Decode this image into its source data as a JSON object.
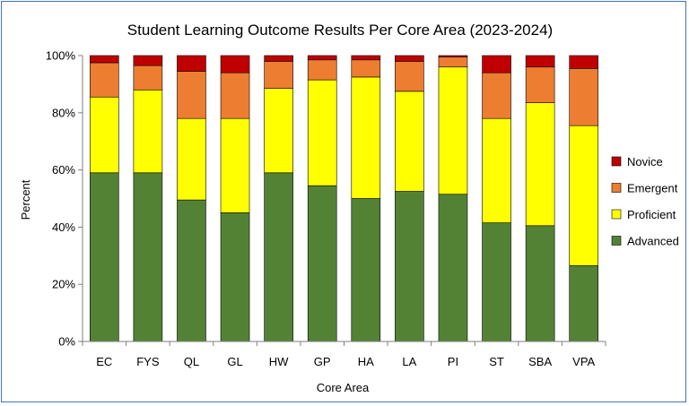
{
  "chart_data": {
    "type": "bar",
    "stacked": true,
    "title": "Student Learning Outcome Results Per Core Area (2023-2024)",
    "xlabel": "Core Area",
    "ylabel": "Percent",
    "ylim": [
      0,
      100
    ],
    "y_ticks": [
      "0%",
      "20%",
      "40%",
      "60%",
      "80%",
      "100%"
    ],
    "grid": false,
    "legend_position": "right",
    "categories": [
      "EC",
      "FYS",
      "QL",
      "GL",
      "HW",
      "GP",
      "HA",
      "LA",
      "PI",
      "ST",
      "SBA",
      "VPA"
    ],
    "series": [
      {
        "name": "Advanced",
        "color": "#548235",
        "values": [
          59,
          59,
          49.5,
          45,
          59,
          54.5,
          50,
          52.5,
          51.5,
          41.5,
          40.5,
          26.5
        ]
      },
      {
        "name": "Proficient",
        "color": "#ffff00",
        "values": [
          26.5,
          29,
          28.5,
          33,
          29.5,
          37,
          42.5,
          35,
          44.5,
          36.5,
          43,
          49
        ]
      },
      {
        "name": "Emergent",
        "color": "#ed7d31",
        "values": [
          12,
          8.5,
          16.5,
          16,
          9.5,
          7,
          6,
          10.5,
          3.5,
          16,
          12.5,
          20
        ]
      },
      {
        "name": "Novice",
        "color": "#c00000",
        "values": [
          2.5,
          3.5,
          5.5,
          6,
          2,
          1.5,
          1.5,
          2,
          0.5,
          6,
          4,
          4.5
        ]
      }
    ]
  }
}
